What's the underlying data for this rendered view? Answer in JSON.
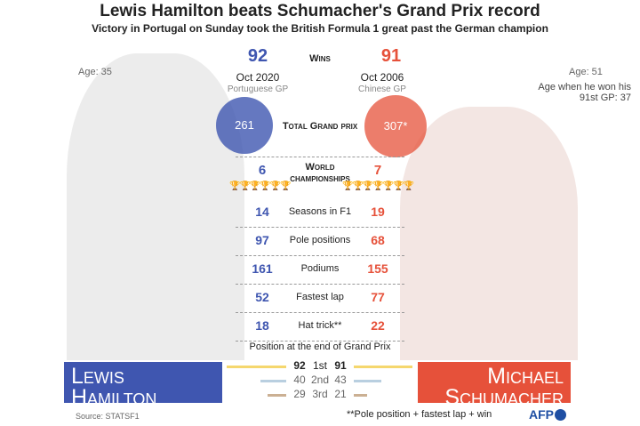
{
  "title": "Lewis Hamilton beats Schumacher's Grand Prix record",
  "subtitle": "Victory in Portugal on Sunday took the British Formula 1 great past the German champion",
  "colors": {
    "hamilton": "#3f56b0",
    "schumacher": "#e6513a",
    "first": "#f5d76e",
    "second": "#b9cfe0",
    "third": "#cbb093"
  },
  "hamilton": {
    "age": "Age: 35",
    "wins": "92",
    "win_date": "Oct 2020",
    "win_gp": "Portuguese GP",
    "total_gp": "261",
    "championships": "6",
    "seasons": "14",
    "poles": "97",
    "podiums": "161",
    "fastest_lap": "52",
    "hat_trick": "18",
    "name1": "Lewis",
    "name2": "Hamilton"
  },
  "schumacher": {
    "age": "Age: 51",
    "age_note": "Age when he won his 91st GP: 37",
    "wins": "91",
    "win_date": "Oct 2006",
    "win_gp": "Chinese GP",
    "total_gp": "307*",
    "championships": "7",
    "seasons": "19",
    "poles": "68",
    "podiums": "155",
    "fastest_lap": "77",
    "hat_trick": "22",
    "name1": "Michael",
    "name2": "Schumacher"
  },
  "labels": {
    "wins": "Wins",
    "total_gp": "Total Grand prix",
    "championships": "World championships",
    "seasons": "Seasons in F1",
    "poles": "Pole positions",
    "podiums": "Podiums",
    "fastest_lap": "Fastest lap",
    "hat_trick": "Hat trick**",
    "positions_title": "Position at the end of Grand Prix"
  },
  "positions": [
    {
      "label": "1st",
      "hamilton": 92,
      "schumacher": 91
    },
    {
      "label": "2nd",
      "hamilton": 40,
      "schumacher": 43
    },
    {
      "label": "3rd",
      "hamilton": 29,
      "schumacher": 21
    }
  ],
  "footnote": "**Pole position + fastest lap + win",
  "source": "Source: STATSF1",
  "logo": "AFP"
}
